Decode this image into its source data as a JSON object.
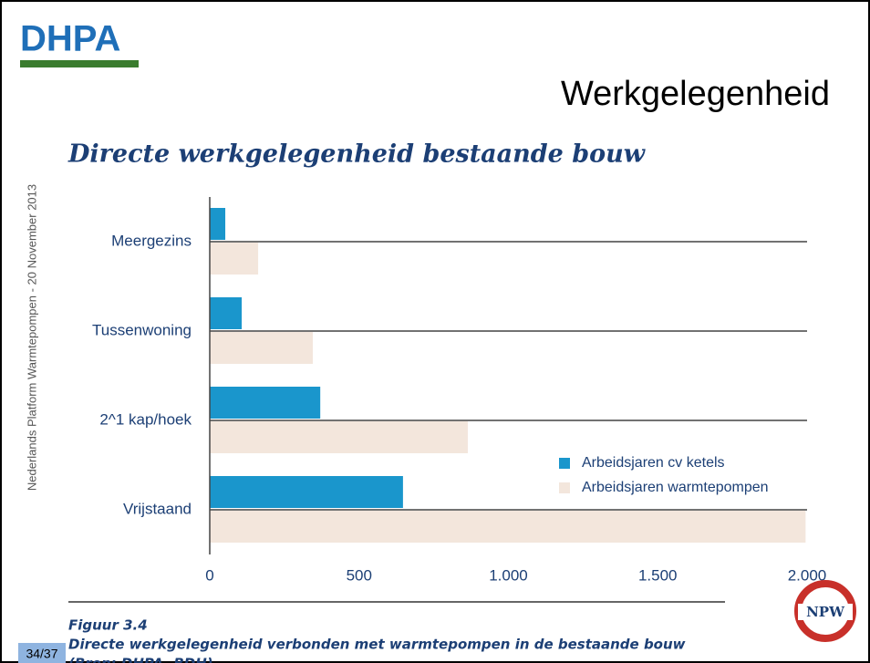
{
  "slide": {
    "logo": "DHPA",
    "title": "Werkgelegenheid",
    "side_text": "Nederlands Platform Warmtepompen - 20 November 2013",
    "page_number": "34/37",
    "footer_logo": "NPW"
  },
  "figure": {
    "label": "Figuur 3.4",
    "caption": "Directe werkgelegenheid verbonden met warmtepompen in de bestaande bouw",
    "source": "(Bron: DHPA, BDH)"
  },
  "chart_data": {
    "type": "bar",
    "orientation": "horizontal",
    "title": "Directe werkgelegenheid bestaande bouw",
    "categories": [
      "Meergezins",
      "Tussenwoning",
      "2^1 kap/hoek",
      "Vrijstaand"
    ],
    "series": [
      {
        "name": "Arbeidsjaren cv ketels",
        "color": "#1a96cc",
        "values": [
          52,
          107,
          370,
          647
        ]
      },
      {
        "name": "Arbeidsjaren warmtepompen",
        "color": "#f3e6dc",
        "values": [
          162,
          345,
          864,
          1995
        ]
      }
    ],
    "xlim": [
      0,
      2000
    ],
    "xticks": [
      0,
      500,
      {
        "value": 1000,
        "label": "1.000"
      },
      {
        "value": 1500,
        "label": "1.500"
      },
      {
        "value": 2000,
        "label": "2.000"
      }
    ],
    "grid": true,
    "legend": "lower right"
  }
}
